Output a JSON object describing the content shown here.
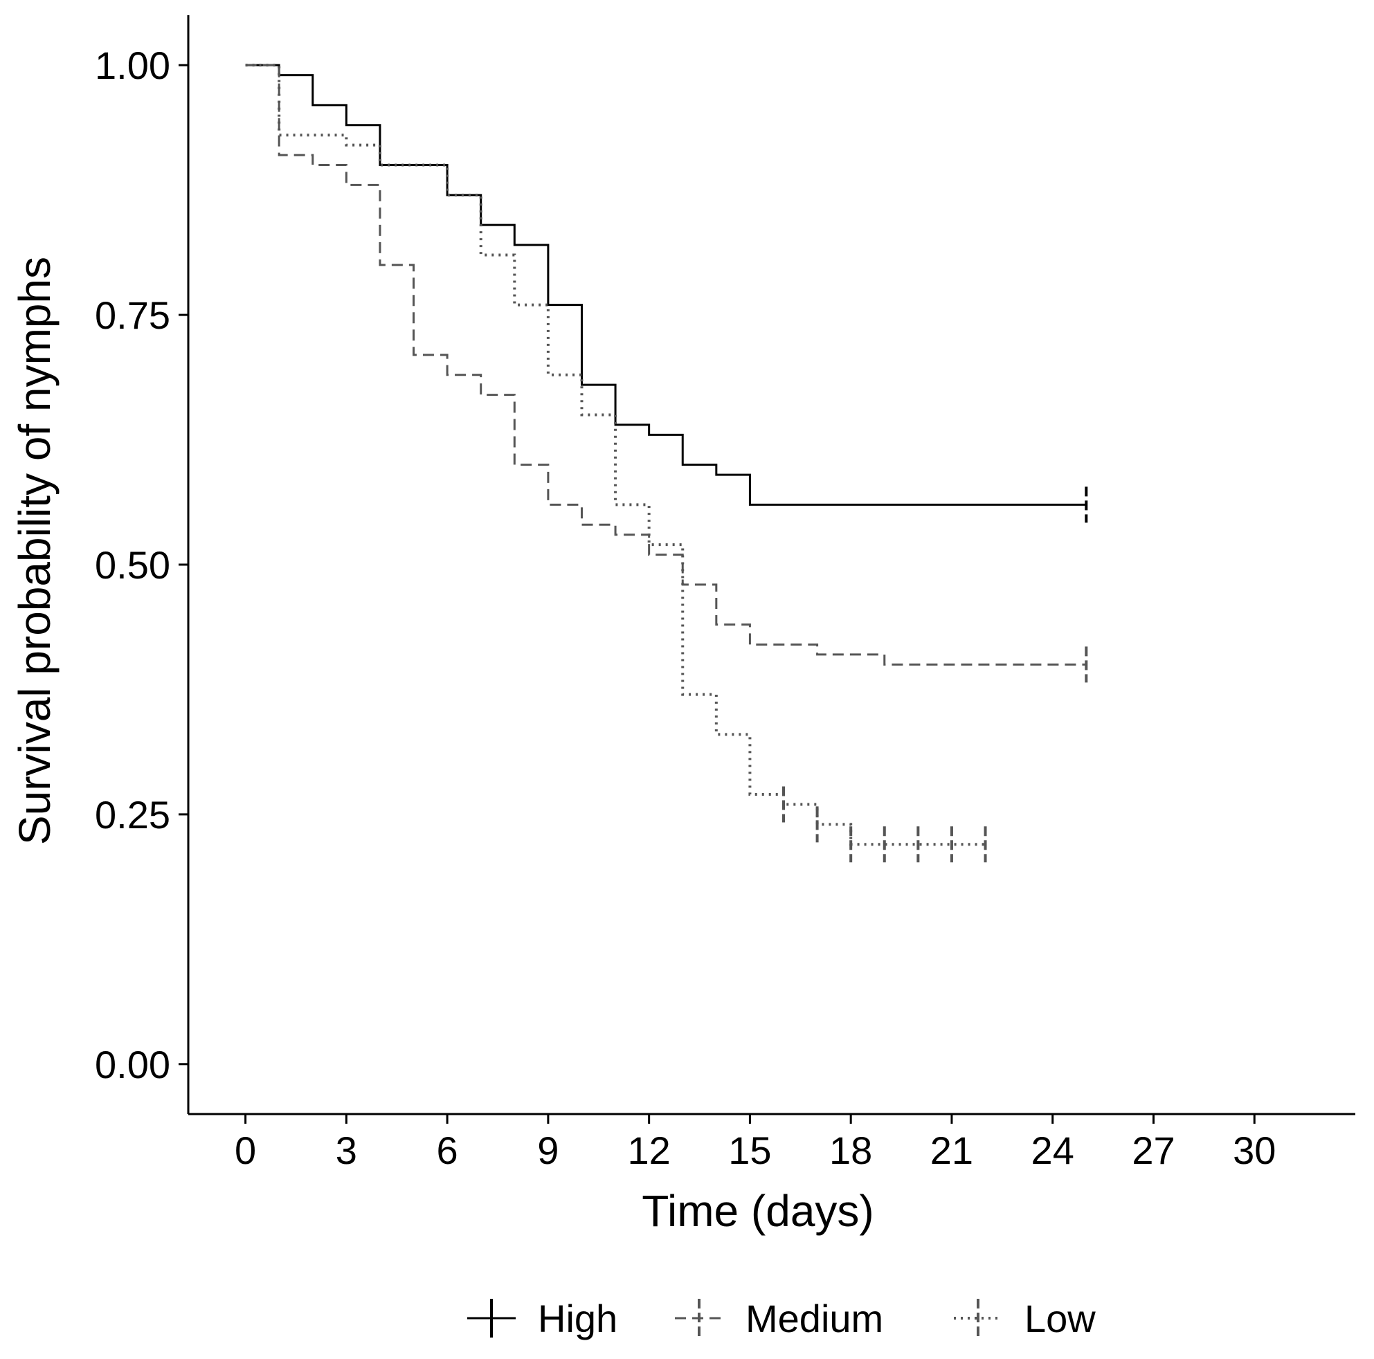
{
  "chart_data": {
    "type": "line",
    "subtype": "kaplan-meier step",
    "xlabel": "Time (days)",
    "ylabel": "Survival probability of nymphs",
    "xlim": [
      -1.7,
      33
    ],
    "ylim": [
      -0.05,
      1.05
    ],
    "xticks": [
      0,
      3,
      6,
      9,
      12,
      15,
      18,
      21,
      24,
      27,
      30
    ],
    "xtick_labels": [
      "0",
      "3",
      "6",
      "9",
      "12",
      "15",
      "18",
      "21",
      "24",
      "27",
      "30"
    ],
    "yticks": [
      0,
      0.25,
      0.5,
      0.75,
      1
    ],
    "ytick_labels": [
      "0.00",
      "0.25",
      "0.50",
      "0.75",
      "1.00"
    ],
    "grid": false,
    "legend_position": "bottom",
    "series": [
      {
        "name": "High",
        "linestyle": "solid",
        "color": "#000000",
        "steps": [
          [
            0,
            1.0
          ],
          [
            1,
            0.99
          ],
          [
            2,
            0.96
          ],
          [
            3,
            0.94
          ],
          [
            4,
            0.9
          ],
          [
            6,
            0.87
          ],
          [
            7,
            0.84
          ],
          [
            8,
            0.82
          ],
          [
            9,
            0.76
          ],
          [
            10,
            0.68
          ],
          [
            11,
            0.64
          ],
          [
            12,
            0.63
          ],
          [
            13,
            0.6
          ],
          [
            14,
            0.59
          ],
          [
            15,
            0.56
          ],
          [
            25,
            0.56
          ]
        ],
        "censored": [
          25
        ]
      },
      {
        "name": "Medium",
        "linestyle": "dashed",
        "color": "#555555",
        "steps": [
          [
            0,
            1.0
          ],
          [
            1,
            0.91
          ],
          [
            2,
            0.9
          ],
          [
            3,
            0.88
          ],
          [
            4,
            0.8
          ],
          [
            5,
            0.71
          ],
          [
            6,
            0.69
          ],
          [
            7,
            0.67
          ],
          [
            8,
            0.6
          ],
          [
            9,
            0.56
          ],
          [
            10,
            0.54
          ],
          [
            11,
            0.53
          ],
          [
            12,
            0.51
          ],
          [
            13,
            0.48
          ],
          [
            14,
            0.44
          ],
          [
            15,
            0.42
          ],
          [
            17,
            0.41
          ],
          [
            19,
            0.4
          ],
          [
            25,
            0.4
          ]
        ],
        "censored": [
          25
        ]
      },
      {
        "name": "Low",
        "linestyle": "dotted",
        "color": "#555555",
        "steps": [
          [
            0,
            1.0
          ],
          [
            1,
            0.93
          ],
          [
            3,
            0.92
          ],
          [
            4,
            0.9
          ],
          [
            6,
            0.87
          ],
          [
            7,
            0.81
          ],
          [
            8,
            0.76
          ],
          [
            9,
            0.69
          ],
          [
            10,
            0.65
          ],
          [
            11,
            0.56
          ],
          [
            12,
            0.52
          ],
          [
            13,
            0.37
          ],
          [
            14,
            0.33
          ],
          [
            15,
            0.27
          ],
          [
            16,
            0.26
          ],
          [
            17,
            0.24
          ],
          [
            18,
            0.22
          ],
          [
            22,
            0.22
          ]
        ],
        "censored": [
          16,
          17,
          18,
          19,
          20,
          21,
          22
        ]
      }
    ]
  }
}
